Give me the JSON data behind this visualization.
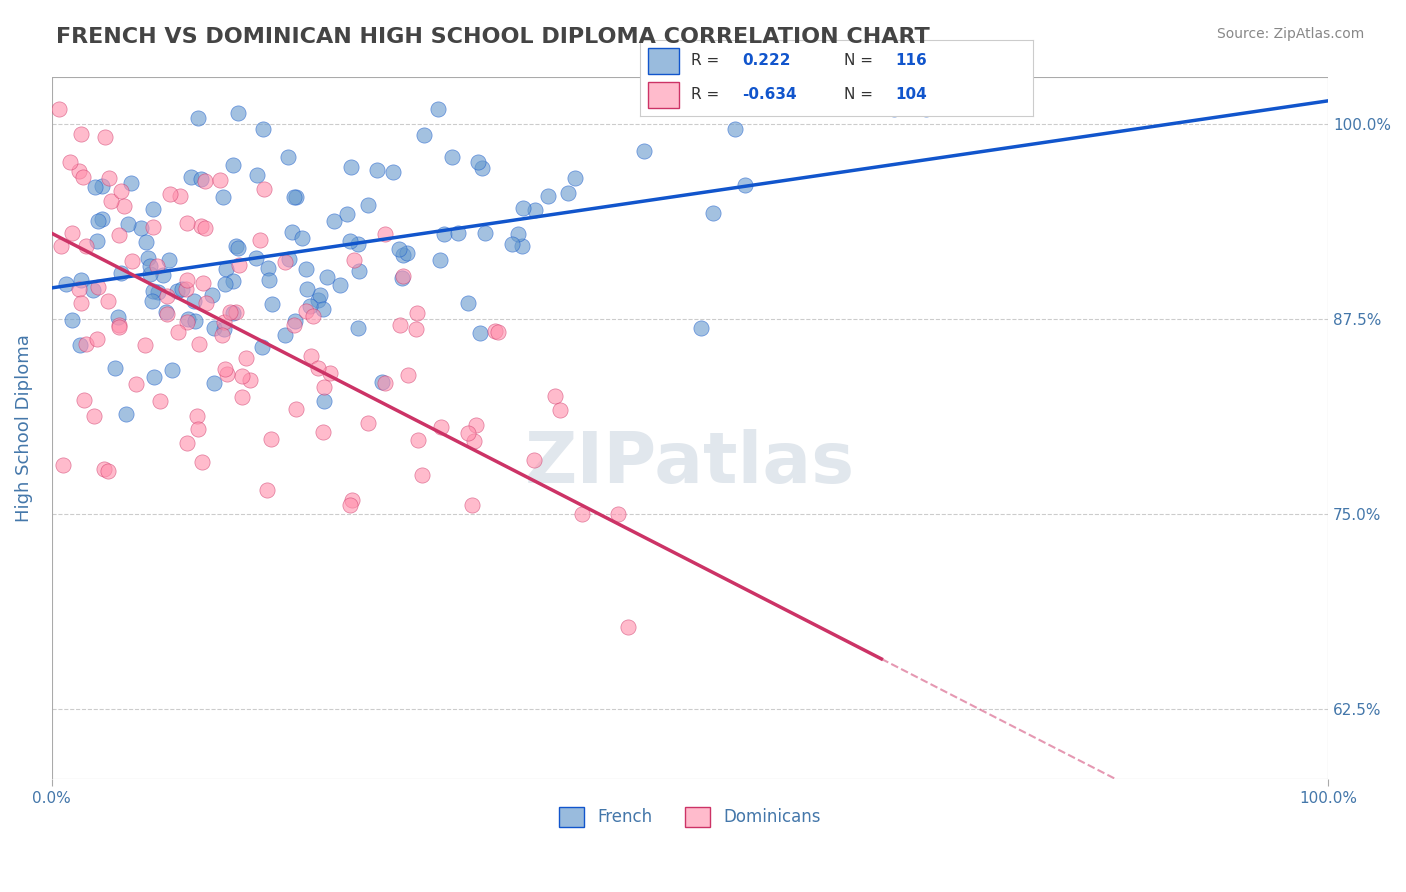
{
  "title": "FRENCH VS DOMINICAN HIGH SCHOOL DIPLOMA CORRELATION CHART",
  "source": "Source: ZipAtlas.com",
  "xlabel": "",
  "ylabel": "High School Diploma",
  "xlim": [
    0.0,
    1.0
  ],
  "ylim": [
    0.58,
    1.03
  ],
  "yticks": [
    0.625,
    0.75,
    0.875,
    1.0
  ],
  "ytick_labels": [
    "62.5%",
    "75.0%",
    "87.5%",
    "100.0%"
  ],
  "xtick_labels": [
    "0.0%",
    "100.0%"
  ],
  "french_R": 0.222,
  "french_N": 116,
  "dominican_R": -0.634,
  "dominican_N": 104,
  "french_color": "#6699CC",
  "dominican_color": "#FF8FAB",
  "french_line_color": "#1155CC",
  "dominican_line_color": "#CC3366",
  "legend_box_color_french": "#99BBDD",
  "legend_box_color_dominican": "#FFBBCC",
  "background_color": "#FFFFFF",
  "title_color": "#333333",
  "axis_label_color": "#4477AA",
  "grid_color": "#CCCCCC",
  "watermark_color": "#AABBCC",
  "french_seed": 42,
  "dominican_seed": 123,
  "french_intercept": 0.895,
  "french_slope": 0.12,
  "dominican_intercept": 0.93,
  "dominican_slope": -0.42
}
